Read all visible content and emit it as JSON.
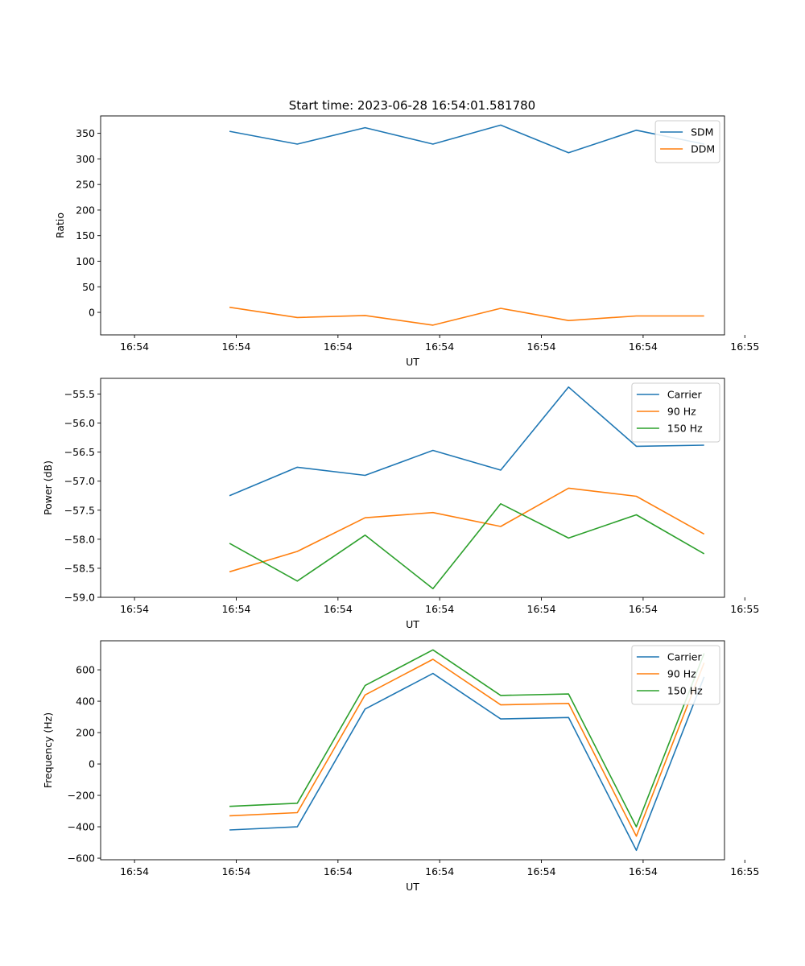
{
  "figure_title": "Start time: 2023-06-28 16:54:01.581780",
  "chart_data": [
    {
      "type": "line",
      "title": "Start time: 2023-06-28 16:54:01.581780",
      "xlabel": "UT",
      "ylabel": "Ratio",
      "x": [
        1.9,
        2.9,
        3.9,
        4.9,
        5.9,
        6.9,
        7.9,
        8.9
      ],
      "xlim": [
        0,
        9.2
      ],
      "xticks": [
        0.5,
        2,
        3.5,
        5,
        6.5,
        8,
        9.5
      ],
      "xtick_labels": [
        "16:54",
        "16:54",
        "16:54",
        "16:54",
        "16:54",
        "16:54",
        "16:55"
      ],
      "ylim": [
        -44,
        384
      ],
      "yticks": [
        0,
        50,
        100,
        150,
        200,
        250,
        300,
        350
      ],
      "ytick_labels": [
        "0",
        "50",
        "100",
        "150",
        "200",
        "250",
        "300",
        "350"
      ],
      "grid": false,
      "legend": "top-right",
      "series": [
        {
          "name": "SDM",
          "color": "#1f77b4",
          "values": [
            354,
            329,
            361,
            329,
            366,
            312,
            356,
            329
          ]
        },
        {
          "name": "DDM",
          "color": "#ff7f0e",
          "values": [
            10,
            -10,
            -6,
            -25,
            8,
            -16,
            -7,
            -7
          ]
        }
      ]
    },
    {
      "type": "line",
      "xlabel": "UT",
      "ylabel": "Power (dB)",
      "x": [
        1.9,
        2.9,
        3.9,
        4.9,
        5.9,
        6.9,
        7.9,
        8.9
      ],
      "xlim": [
        0,
        9.2
      ],
      "xticks": [
        0.5,
        2,
        3.5,
        5,
        6.5,
        8,
        9.5
      ],
      "xtick_labels": [
        "16:54",
        "16:54",
        "16:54",
        "16:54",
        "16:54",
        "16:54",
        "16:55"
      ],
      "ylim": [
        -59.0,
        -55.23
      ],
      "yticks": [
        -59.0,
        -58.5,
        -58.0,
        -57.5,
        -57.0,
        -56.5,
        -56.0,
        -55.5
      ],
      "ytick_labels": [
        "−59.0",
        "−58.5",
        "−58.0",
        "−57.5",
        "−57.0",
        "−56.5",
        "−56.0",
        "−55.5"
      ],
      "grid": false,
      "legend": "top-right",
      "series": [
        {
          "name": "Carrier",
          "color": "#1f77b4",
          "values": [
            -57.25,
            -56.76,
            -56.9,
            -56.47,
            -56.81,
            -55.38,
            -56.4,
            -56.38
          ]
        },
        {
          "name": "90 Hz",
          "color": "#ff7f0e",
          "values": [
            -58.56,
            -58.21,
            -57.63,
            -57.54,
            -57.78,
            -57.12,
            -57.26,
            -57.91
          ]
        },
        {
          "name": "150 Hz",
          "color": "#2ca02c",
          "values": [
            -58.07,
            -58.72,
            -57.93,
            -58.85,
            -57.39,
            -57.98,
            -57.58,
            -58.25
          ]
        }
      ]
    },
    {
      "type": "line",
      "xlabel": "UT",
      "ylabel": "Frequency (Hz)",
      "x": [
        1.9,
        2.9,
        3.9,
        4.9,
        5.9,
        6.9,
        7.9,
        8.9
      ],
      "xlim": [
        0,
        9.2
      ],
      "xticks": [
        0.5,
        2,
        3.5,
        5,
        6.5,
        8,
        9.5
      ],
      "xtick_labels": [
        "16:54",
        "16:54",
        "16:54",
        "16:54",
        "16:54",
        "16:54",
        "16:55"
      ],
      "ylim": [
        -610,
        785
      ],
      "yticks": [
        -600,
        -400,
        -200,
        0,
        200,
        400,
        600
      ],
      "ytick_labels": [
        "−600",
        "−400",
        "−200",
        "0",
        "200",
        "400",
        "600"
      ],
      "grid": false,
      "legend": "top-right",
      "series": [
        {
          "name": "Carrier",
          "color": "#1f77b4",
          "values": [
            -420,
            -400,
            350,
            577,
            287,
            296,
            -550,
            555
          ]
        },
        {
          "name": "90 Hz",
          "color": "#ff7f0e",
          "values": [
            -330,
            -310,
            440,
            667,
            377,
            386,
            -460,
            645
          ]
        },
        {
          "name": "150 Hz",
          "color": "#2ca02c",
          "values": [
            -270,
            -250,
            500,
            727,
            437,
            446,
            -400,
            705
          ]
        }
      ]
    }
  ]
}
